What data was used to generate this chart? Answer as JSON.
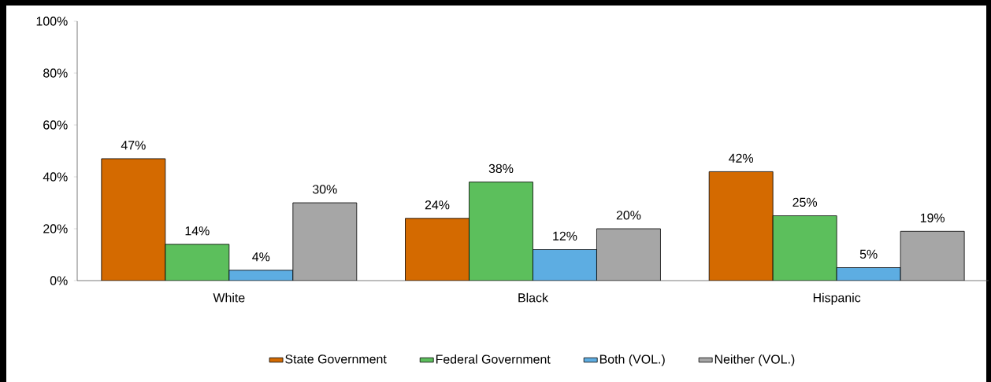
{
  "chart_data": {
    "type": "bar",
    "categories": [
      "White",
      "Black",
      "Hispanic"
    ],
    "series": [
      {
        "name": "State Government",
        "color": "#d46a00",
        "values": [
          47,
          24,
          42
        ],
        "value_labels": [
          "47%",
          "24%",
          "42%"
        ]
      },
      {
        "name": "Federal Government",
        "color": "#5cbf5c",
        "values": [
          14,
          38,
          25
        ],
        "value_labels": [
          "14%",
          "38%",
          "25%"
        ]
      },
      {
        "name": "Both (VOL.)",
        "color": "#5dade2",
        "values": [
          4,
          12,
          5
        ],
        "value_labels": [
          "4%",
          "12%",
          "5%"
        ]
      },
      {
        "name": "Neither (VOL.)",
        "color": "#a6a6a6",
        "values": [
          30,
          20,
          19
        ],
        "value_labels": [
          "30%",
          "20%",
          "19%"
        ]
      }
    ],
    "ylim": [
      0,
      100
    ],
    "yticks": [
      {
        "value": 0,
        "label": "0%"
      },
      {
        "value": 20,
        "label": "20%"
      },
      {
        "value": 40,
        "label": "40%"
      },
      {
        "value": 60,
        "label": "60%"
      },
      {
        "value": 80,
        "label": "80%"
      },
      {
        "value": 100,
        "label": "100%"
      }
    ],
    "grid": false,
    "legend": "bottom"
  }
}
